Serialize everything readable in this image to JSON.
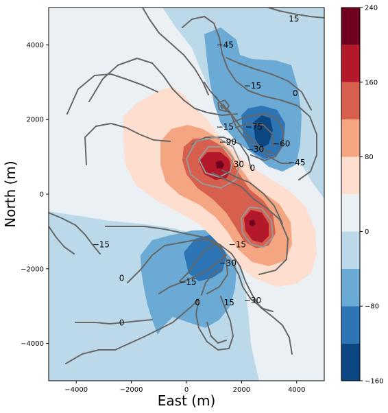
{
  "chart_data": {
    "type": "contour",
    "title": "",
    "xlabel": "East (m)",
    "ylabel": "North (m)",
    "xlim": [
      -5000,
      5000
    ],
    "ylim": [
      -5000,
      5000
    ],
    "xticks": [
      -4000,
      -2000,
      0,
      2000,
      4000
    ],
    "yticks": [
      -4000,
      -2000,
      0,
      2000,
      4000
    ],
    "xtick_labels": [
      "−4000",
      "−2000",
      "0",
      "2000",
      "4000"
    ],
    "ytick_labels": [
      "−4000",
      "−2000",
      "0",
      "2000",
      "4000"
    ],
    "grid": false,
    "colormap": "RdBu_r",
    "colorbar": {
      "levels": [
        -160,
        -120,
        -80,
        -40,
        0,
        40,
        80,
        120,
        160,
        200,
        240
      ],
      "tick_values": [
        -160,
        -80,
        0,
        80,
        160,
        240
      ],
      "tick_labels": [
        "−160",
        "−80",
        "0",
        "80",
        "160",
        "240"
      ],
      "colors": [
        "#0d4783",
        "#2e75b6",
        "#6aaad4",
        "#bcd9ea",
        "#eaf0f3",
        "#fddecf",
        "#f4a683",
        "#d6604d",
        "#b3182b",
        "#6f001f"
      ]
    },
    "filled_features": [
      {
        "x": 1200,
        "y": 800,
        "value": 200
      },
      {
        "x": 2400,
        "y": -800,
        "value": 180
      },
      {
        "x": 2800,
        "y": 1800,
        "value": -140
      },
      {
        "x": 1200,
        "y": -1800,
        "value": -110
      }
    ],
    "line_contours": {
      "color": "#666666",
      "labeled_levels": [
        {
          "label": "15",
          "x": 3900,
          "y": 4700
        },
        {
          "label": "−45",
          "x": 1400,
          "y": 4000
        },
        {
          "label": "−15",
          "x": 2400,
          "y": 2900
        },
        {
          "label": "0",
          "x": 3950,
          "y": 2700
        },
        {
          "label": "−75",
          "x": 2450,
          "y": 1800
        },
        {
          "label": "−15",
          "x": 1400,
          "y": 1800
        },
        {
          "label": "−90",
          "x": 1500,
          "y": 1400
        },
        {
          "label": "−30",
          "x": 2500,
          "y": 1200
        },
        {
          "label": "−60",
          "x": 3450,
          "y": 1350
        },
        {
          "label": "−45",
          "x": 4000,
          "y": 850
        },
        {
          "label": "30",
          "x": 1900,
          "y": 800
        },
        {
          "label": "0",
          "x": 2400,
          "y": 700
        },
        {
          "label": "−15",
          "x": -3100,
          "y": -1350
        },
        {
          "label": "−15",
          "x": 1850,
          "y": -1350
        },
        {
          "label": "−30",
          "x": 1500,
          "y": -1850
        },
        {
          "label": "0",
          "x": -2350,
          "y": -2250
        },
        {
          "label": "−15",
          "x": 50,
          "y": -2350
        },
        {
          "label": "0",
          "x": 400,
          "y": -2900
        },
        {
          "label": "15",
          "x": 1550,
          "y": -2900
        },
        {
          "label": "−30",
          "x": 2400,
          "y": -2850
        },
        {
          "label": "0",
          "x": -2350,
          "y": -3450
        }
      ]
    }
  }
}
